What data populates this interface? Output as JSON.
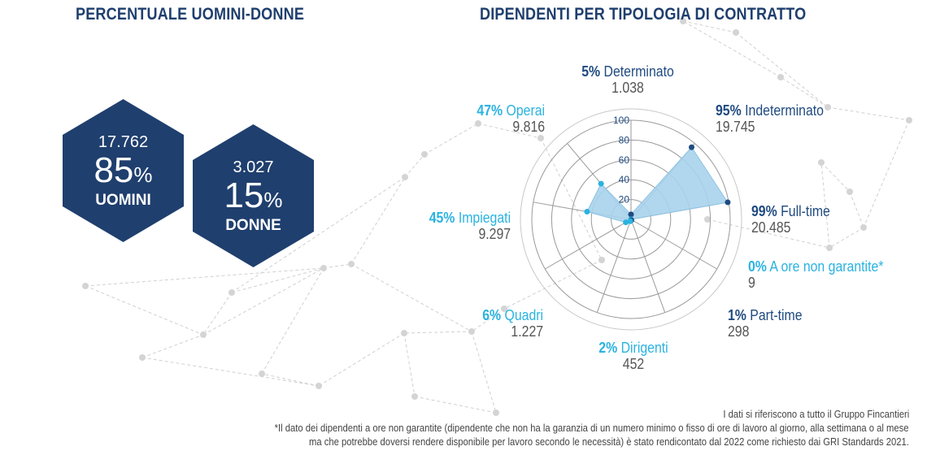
{
  "titles": {
    "left": "PERCENTUALE UOMINI-DONNE",
    "right": "DIPENDENTI PER TIPOLOGIA DI CONTRATTO"
  },
  "gender": {
    "men": {
      "count": "17.762",
      "percent": "85",
      "percent_sign": "%",
      "label": "UOMINI"
    },
    "women": {
      "count": "3.027",
      "percent": "15",
      "percent_sign": "%",
      "label": "DONNE"
    }
  },
  "colors": {
    "navy": "#1f3f6e",
    "dark_series": "#1f4a80",
    "light_series": "#2ab3e0",
    "fill": "#a9d3ec"
  },
  "chart_data": {
    "type": "radar",
    "radial_ticks": [
      20,
      40,
      60,
      80,
      100
    ],
    "rlim": [
      0,
      100
    ],
    "categories": [
      {
        "key": "determinato",
        "label": "Determinato",
        "percent_label": "5%",
        "count": "1.038",
        "value": 5,
        "group": "dark"
      },
      {
        "key": "indeterminato",
        "label": "Indeterminato",
        "percent_label": "95%",
        "count": "19.745",
        "value": 95,
        "group": "dark"
      },
      {
        "key": "fulltime",
        "label": "Full-time",
        "percent_label": "99%",
        "count": "20.485",
        "value": 99,
        "group": "dark"
      },
      {
        "key": "orenongarantite",
        "label": "A ore non garantite*",
        "percent_label": "0%",
        "count": "9",
        "value": 0,
        "group": "light"
      },
      {
        "key": "parttime",
        "label": "Part-time",
        "percent_label": "1%",
        "count": "298",
        "value": 1,
        "group": "dark"
      },
      {
        "key": "dirigenti",
        "label": "Dirigenti",
        "percent_label": "2%",
        "count": "452",
        "value": 2,
        "group": "light"
      },
      {
        "key": "quadri",
        "label": "Quadri",
        "percent_label": "6%",
        "count": "1.227",
        "value": 6,
        "group": "light"
      },
      {
        "key": "impiegati",
        "label": "Impiegati",
        "percent_label": "45%",
        "count": "9.297",
        "value": 45,
        "group": "light"
      },
      {
        "key": "operai",
        "label": "Operai",
        "percent_label": "47%",
        "count": "9.816",
        "value": 47,
        "group": "light"
      }
    ]
  },
  "footnotes": {
    "line1": "I dati si riferiscono a tutto il Gruppo Fincantieri",
    "line2": "*Il dato dei dipendenti a ore non garantite (dipendente che non ha la garanzia di un numero minimo o fisso di ore di lavoro al giorno, alla settimana o al mese",
    "line3": "ma che potrebbe doversi rendere disponibile per lavoro secondo le necessità) è stato rendicontato dal 2022 come richiesto dai GRI Standards 2021."
  }
}
